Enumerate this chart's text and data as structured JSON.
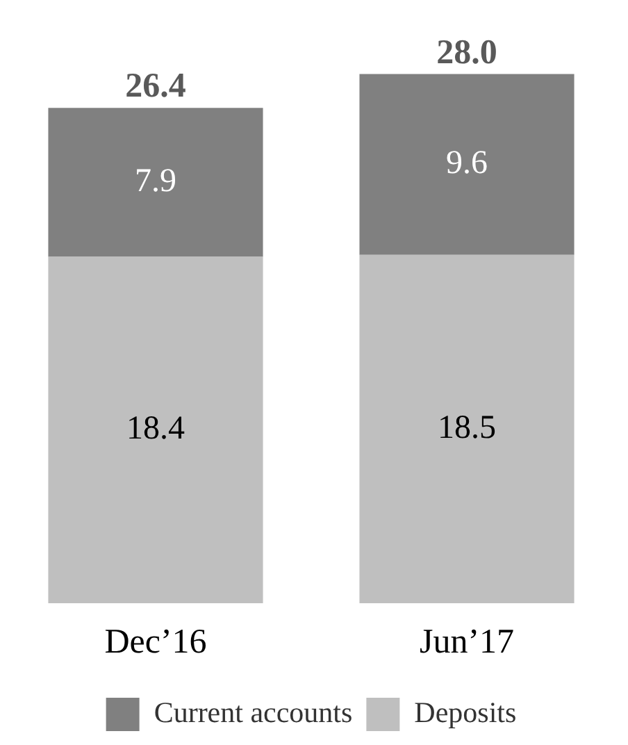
{
  "chart_data": {
    "type": "bar",
    "stacked": true,
    "categories": [
      "Dec’16",
      "Jun’17"
    ],
    "series": [
      {
        "name": "Deposits",
        "color": "#bfbfbf",
        "values": [
          18.4,
          18.5
        ]
      },
      {
        "name": "Current accounts",
        "color": "#808080",
        "values": [
          7.9,
          9.6
        ]
      }
    ],
    "data_labels": true,
    "totals": [
      "26.4",
      "28.0"
    ],
    "legend": "bottom",
    "grid": false
  }
}
